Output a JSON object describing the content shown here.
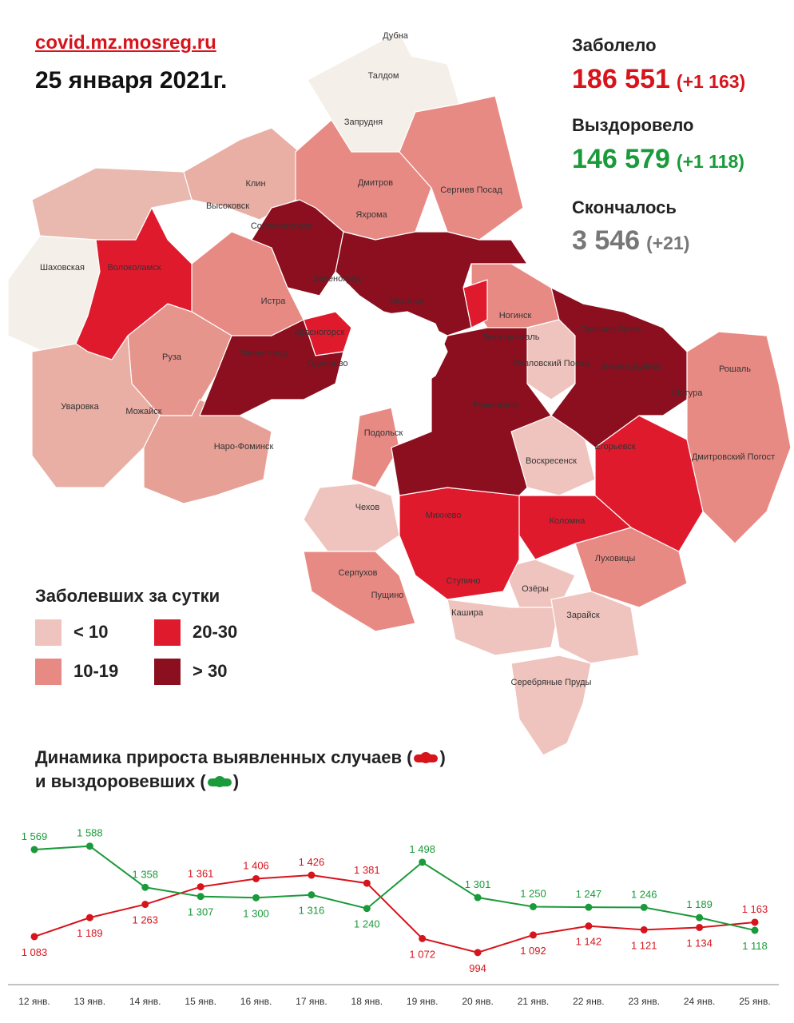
{
  "header": {
    "site": "covid.mz.mosreg.ru",
    "date": "25 января 2021г."
  },
  "stats": {
    "infected_label": "Заболело",
    "infected_value": "186 551",
    "infected_delta": "(+1 163)",
    "recovered_label": "Выздоровело",
    "recovered_value": "146 579",
    "recovered_delta": "(+1 118)",
    "died_label": "Скончалось",
    "died_value": "3 546",
    "died_delta": "(+21)"
  },
  "colors": {
    "red": "#d7141c",
    "green": "#1a9a3a",
    "gray": "#777777",
    "lt10": "#f0c4be",
    "c10_19": "#e88a84",
    "c20_30": "#e01a2d",
    "gt30": "#8b0f1e"
  },
  "legend": {
    "title": "Заболевших за сутки",
    "items": [
      {
        "label": "< 10",
        "color": "#f0c4be"
      },
      {
        "label": "20-30",
        "color": "#e01a2d"
      },
      {
        "label": "10-19",
        "color": "#e88a84"
      },
      {
        "label": "> 30",
        "color": "#8b0f1e"
      }
    ]
  },
  "map": {
    "labels": [
      "Дубна",
      "Талдом",
      "Запрудня",
      "Клин",
      "Дмитров",
      "Сергиев Посад",
      "Высоковск",
      "Яхрома",
      "Солнечногорск",
      "Шаховская",
      "Волоколамск",
      "Зеленоград",
      "Истра",
      "Мытищи",
      "Красногорск",
      "Ногинск",
      "Электросталь",
      "Орехово-Зуево",
      "Звенигород",
      "Одинцово",
      "Павловский Посад",
      "Ликино-Дулёво",
      "Рошаль",
      "Руза",
      "Шатура",
      "Раменское",
      "Уваровка",
      "Можайск",
      "Наро-Фоминск",
      "Воскресенск",
      "Егорьевск",
      "Дмитровский Погост",
      "Подольск",
      "Чехов",
      "Михнево",
      "Коломна",
      "Серпухов",
      "Ступино",
      "Луховицы",
      "Пущино",
      "Озёры",
      "Кашира",
      "Зарайск",
      "Серебряные Пруды"
    ]
  },
  "dynamics": {
    "line1": "Динамика прироста выявленных случаев (",
    "line1_end": ")",
    "line2": "и выздоровевших (",
    "line2_end": ")"
  },
  "chart_data": {
    "type": "line",
    "categories": [
      "12 янв.",
      "13 янв.",
      "14 янв.",
      "15 янв.",
      "16 янв.",
      "17 янв.",
      "18 янв.",
      "19 янв.",
      "20 янв.",
      "21 янв.",
      "22 янв.",
      "23 янв.",
      "24 янв.",
      "25 янв."
    ],
    "series": [
      {
        "values": [
          1083,
          1189,
          1263,
          1361,
          1406,
          1426,
          1381,
          1072,
          994,
          1092,
          1142,
          1121,
          1134,
          1163
        ],
        "color": "#d7141c",
        "labels": [
          "1 083",
          "1 189",
          "1 263",
          "1 361",
          "1 406",
          "1 426",
          "1 381",
          "1 072",
          "994",
          "1 092",
          "1 142",
          "1 121",
          "1 134",
          "1 163"
        ]
      },
      {
        "values": [
          1569,
          1588,
          1358,
          1307,
          1300,
          1316,
          1240,
          1498,
          1301,
          1250,
          1247,
          1246,
          1189,
          1118
        ],
        "color": "#1a9a3a",
        "labels": [
          "1 569",
          "1 588",
          "1 358",
          "1 307",
          "1 300",
          "1 316",
          "1 240",
          "1 498",
          "1 301",
          "1 250",
          "1 247",
          "1 246",
          "1 189",
          "1 118"
        ]
      }
    ],
    "grid": false,
    "legend": "none"
  }
}
